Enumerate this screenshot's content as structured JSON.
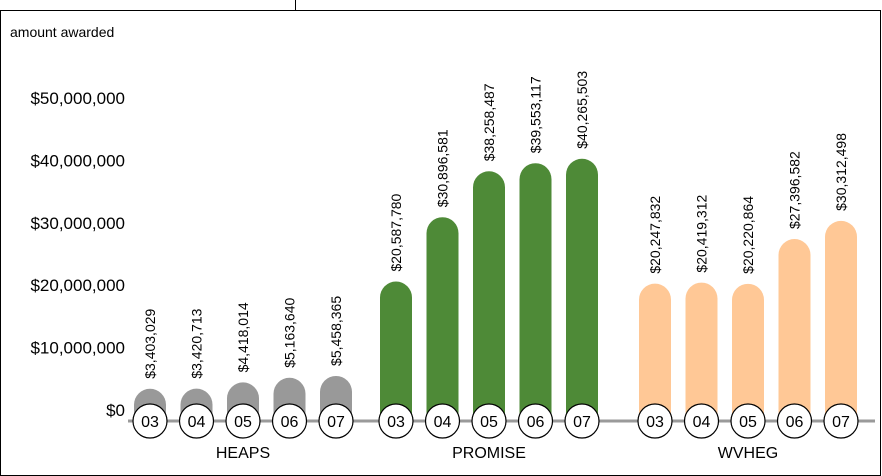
{
  "chart_data": {
    "type": "bar",
    "ylabel": "amount awarded",
    "ylim": [
      0,
      50000000
    ],
    "yticks": [
      {
        "value": 0,
        "label": "$0"
      },
      {
        "value": 10000000,
        "label": "$10,000,000"
      },
      {
        "value": 20000000,
        "label": "$20,000,000"
      },
      {
        "value": 30000000,
        "label": "$30,000,000"
      },
      {
        "value": 40000000,
        "label": "$40,000,000"
      },
      {
        "value": 50000000,
        "label": "$50,000,000"
      }
    ],
    "grid": false,
    "groups": [
      {
        "name": "HEAPS",
        "color": "#999999",
        "bars": [
          {
            "year": "03",
            "value": 3403029,
            "label": "$3,403,029"
          },
          {
            "year": "04",
            "value": 3420713,
            "label": "$3,420,713"
          },
          {
            "year": "05",
            "value": 4418014,
            "label": "$4,418,014"
          },
          {
            "year": "06",
            "value": 5163640,
            "label": "$5,163,640"
          },
          {
            "year": "07",
            "value": 5458365,
            "label": "$5,458,365"
          }
        ]
      },
      {
        "name": "PROMISE",
        "color": "#4e8a37",
        "bars": [
          {
            "year": "03",
            "value": 20587780,
            "label": "$20,587,780"
          },
          {
            "year": "04",
            "value": 30896581,
            "label": "$30,896,581"
          },
          {
            "year": "05",
            "value": 38258487,
            "label": "$38,258,487"
          },
          {
            "year": "06",
            "value": 39553117,
            "label": "$39,553,117"
          },
          {
            "year": "07",
            "value": 40265503,
            "label": "$40,265,503"
          }
        ]
      },
      {
        "name": "WVHEG",
        "color": "#ffc896",
        "bars": [
          {
            "year": "03",
            "value": 20247832,
            "label": "$20,247,832"
          },
          {
            "year": "04",
            "value": 20419312,
            "label": "$20,419,312"
          },
          {
            "year": "05",
            "value": 20220864,
            "label": "$20,220,864"
          },
          {
            "year": "06",
            "value": 27396582,
            "label": "$27,396,582"
          },
          {
            "year": "07",
            "value": 30312498,
            "label": "$30,312,498"
          }
        ]
      }
    ]
  }
}
